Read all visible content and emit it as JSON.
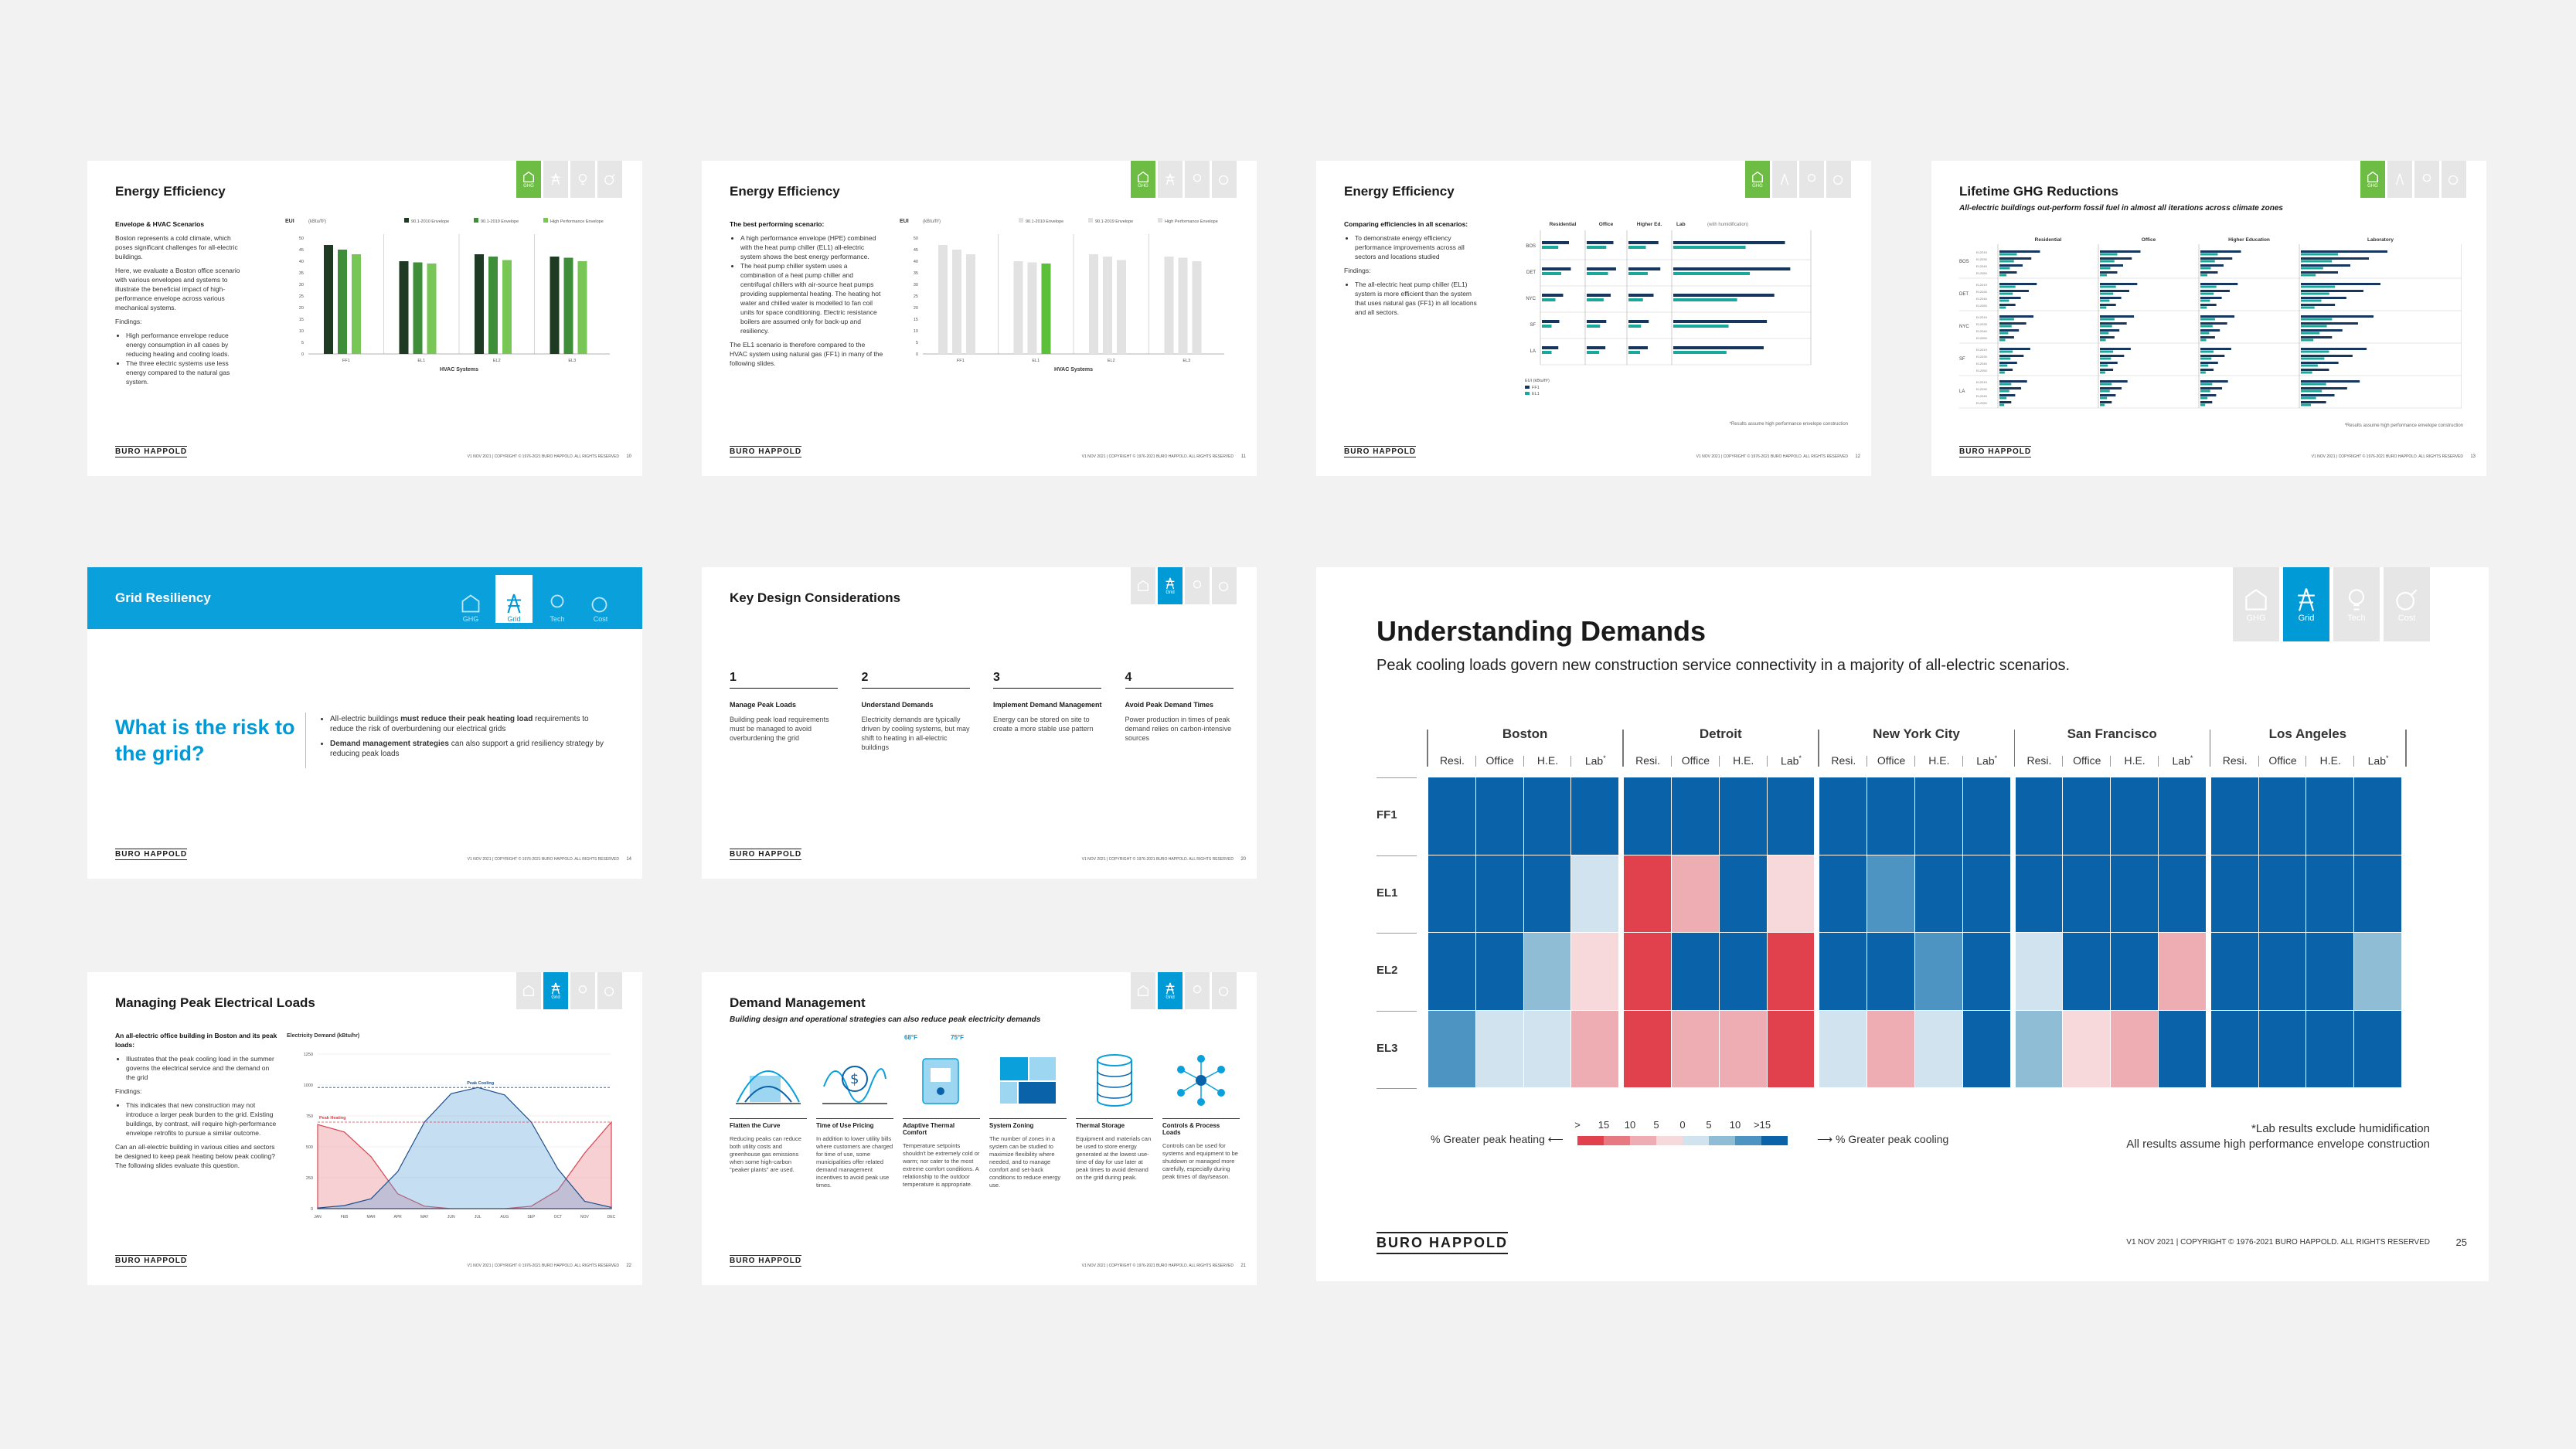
{
  "slides": {
    "s1": {
      "title": "Energy Efficiency",
      "subtitle": "Envelope & HVAC Scenarios",
      "paras": [
        "Boston represents a cold climate, which poses significant challenges for all-electric buildings.",
        "Here, we evaluate a Boston office scenario with various envelopes and systems to illustrate the beneficial impact of high-performance envelope across various mechanical systems.",
        "Findings:"
      ],
      "bullets": [
        "High performance envelope reduce energy consumption in all cases by reducing heating and cooling loads.",
        "The three electric systems use less energy compared to the natural gas system."
      ],
      "page": "10",
      "active_icon": "GHG"
    },
    "s2": {
      "title": "Energy Efficiency",
      "subtitle": "The best performing scenario:",
      "bullets": [
        "A high performance envelope (HPE) combined with the heat pump chiller (EL1) all-electric system shows the best energy performance.",
        "The heat pump chiller system uses a combination of a heat pump chiller and centrifugal chillers with air-source heat pumps providing supplemental heating. The heating hot water and chilled water is modelled to fan coil units for space conditioning. Electric resistance boilers are assumed only for back-up and resiliency."
      ],
      "paras": [
        "The EL1 scenario is therefore compared to the HVAC system using natural gas (FF1) in many of the following slides."
      ],
      "page": "11",
      "active_icon": "GHG"
    },
    "s3": {
      "title": "Energy Efficiency",
      "subtitle": "Comparing efficiencies in all scenarios:",
      "bullets": [
        "To demonstrate energy efficiency performance improvements across all sectors and locations studied"
      ],
      "paras": [
        "Findings:"
      ],
      "bullets2": [
        "The all-electric heat pump chiller (EL1) system is more efficient than the system that uses natural gas (FF1) in all locations and all sectors."
      ],
      "footnote": "*Results assume high performance envelope construction",
      "page": "12",
      "active_icon": "GHG"
    },
    "s4": {
      "title": "Lifetime GHG Reductions",
      "subtitle": "All-electric buildings out-perform fossil fuel in almost all iterations across climate zones",
      "footnote": "*Results assume high performance envelope construction",
      "page": "13",
      "active_icon": "GHG"
    },
    "s5": {
      "banner": "Grid Resiliency",
      "question": "What is the risk to the grid?",
      "bullet1_a": "All-electric buildings ",
      "bullet1_b": "must reduce their peak heating load",
      "bullet1_c": " requirements to reduce the risk of overburdening our electrical grids",
      "bullet2_a": "Demand management strategies",
      "bullet2_b": " can also support a grid resiliency strategy by reducing peak loads",
      "page": "14"
    },
    "s6": {
      "title": "Key Design Considerations",
      "items": [
        {
          "num": "1",
          "head": "Manage Peak Loads",
          "text": "Building peak load requirements must be managed to avoid overburdening the grid"
        },
        {
          "num": "2",
          "head": "Understand Demands",
          "text": "Electricity demands are typically driven by cooling systems, but may shift to heating in all-electric buildings"
        },
        {
          "num": "3",
          "head": "Implement Demand Management",
          "text": "Energy can be stored on site to create a more stable use pattern"
        },
        {
          "num": "4",
          "head": "Avoid Peak Demand Times",
          "text": "Power production in times of peak demand relies on carbon-intensive sources"
        }
      ],
      "page": "20"
    },
    "s7": {
      "title": "Managing Peak Electrical Loads",
      "subtitle": "An all-electric office building in Boston and its peak loads:",
      "bullets": [
        "Illustrates that the peak cooling load in the summer governs the electrical service and the demand on the grid"
      ],
      "paras": [
        "Findings:"
      ],
      "bullets2": [
        "This indicates that new construction may not introduce a larger peak burden to the grid. Existing buildings, by contrast, will require high-performance envelope retrofits to pursue a similar outcome."
      ],
      "closing": "Can an all-electric building in various cities and sectors be designed to keep peak heating below peak cooling? The following slides evaluate this question.",
      "page": "22"
    },
    "s8": {
      "title": "Demand Management",
      "subtitle": "Building design and operational strategies can also reduce peak electricity demands",
      "temps": [
        "68°F",
        "75°F"
      ],
      "items": [
        {
          "head": "Flatten the Curve",
          "text": "Reducing peaks can reduce both utility costs and greenhouse gas emissions when some high-carbon \"peaker plants\" are used."
        },
        {
          "head": "Time of Use Pricing",
          "text": "In addition to lower utility bills where customers are charged for time of use, some municipalities offer related demand management incentives to avoid peak use times."
        },
        {
          "head": "Adaptive Thermal Comfort",
          "text": "Temperature setpoints shouldn't be extremely cold or warm; nor cater to the most extreme comfort conditions. A relationship to the outdoor temperature is appropriate."
        },
        {
          "head": "System Zoning",
          "text": "The number of zones in a system can be studied to maximize flexibility where needed, and to manage comfort and set-back conditions to reduce energy use."
        },
        {
          "head": "Thermal Storage",
          "text": "Equipment and materials can be used to store energy generated at the lowest use-time of day for use later at peak times to avoid demand on the grid during peak."
        },
        {
          "head": "Controls & Process Loads",
          "text": "Controls can be used for systems and equipment to be shutdown or managed more carefully, especially during peak times of day/season."
        }
      ],
      "page": "21"
    }
  },
  "small_icon_labels": [
    "GHG",
    "Grid",
    "Tech",
    "Cost"
  ],
  "s1_chart": {
    "type": "bar",
    "ylabel": "EUI",
    "yunit": "(kBtu/ft²)",
    "xlabel": "HVAC Systems",
    "categories": [
      "FF1",
      "EL1",
      "EL2",
      "EL3"
    ],
    "legend": [
      "90.1-2010 Envelope",
      "90.1-2019 Envelope",
      "High Performance Envelope"
    ],
    "colors": [
      "#1e3a22",
      "#3f8f3a",
      "#78c756"
    ],
    "series": [
      [
        47,
        45,
        43
      ],
      [
        40,
        39.5,
        39
      ],
      [
        43,
        42,
        40.5
      ],
      [
        42,
        41.5,
        40
      ]
    ],
    "ylim": [
      0,
      50
    ],
    "yticks": [
      "0",
      "5",
      "10",
      "15",
      "20",
      "25",
      "30",
      "35",
      "40",
      "45",
      "50"
    ]
  },
  "s3_chart": {
    "sectors": [
      "Residential",
      "Office",
      "Higher Ed.",
      "Lab"
    ],
    "lab_note": "(with humidification)",
    "cities": [
      "BOS",
      "DET",
      "NYC",
      "SF",
      "LA"
    ],
    "legend_title": "EUI (kBtu/ft²)",
    "legend": [
      "FF1",
      "EL1"
    ],
    "colors": [
      "#17365d",
      "#19a89c"
    ],
    "values": [
      [
        [
          28,
          17
        ],
        [
          30,
          22
        ],
        [
          31,
          18
        ],
        [
          105,
          68
        ]
      ],
      [
        [
          30,
          20
        ],
        [
          33,
          24
        ],
        [
          33,
          20
        ],
        [
          110,
          72
        ]
      ],
      [
        [
          22,
          14
        ],
        [
          27,
          19
        ],
        [
          26,
          15
        ],
        [
          95,
          60
        ]
      ],
      [
        [
          18,
          10
        ],
        [
          22,
          15
        ],
        [
          21,
          13
        ],
        [
          88,
          52
        ]
      ],
      [
        [
          17,
          10
        ],
        [
          21,
          14
        ],
        [
          20,
          12
        ],
        [
          85,
          50
        ]
      ]
    ],
    "max": [
      40,
      40,
      40,
      125
    ]
  },
  "s4_chart": {
    "sectors": [
      "Residential",
      "Office",
      "Higher Education",
      "Laboratory"
    ],
    "lab_note": "(with humidification)",
    "cities": [
      "BOS",
      "DET",
      "NYC",
      "SF",
      "LA"
    ],
    "scenarios": [
      "EL2019",
      "EL2030",
      "EL2040",
      "EL2050"
    ],
    "legend_title": "kgCO₂e/ft²",
    "legend": [
      "Natural Gas",
      "All-Electric"
    ],
    "colors": [
      "#17365d",
      "#19a89c"
    ]
  },
  "s7_chart": {
    "title": "Electricity Demand (kBtu/hr)",
    "months": [
      "JAN",
      "FEB",
      "MAR",
      "APR",
      "MAY",
      "JUN",
      "JUL",
      "AUG",
      "SEP",
      "OCT",
      "NOV",
      "DEC"
    ],
    "cooling": [
      5,
      25,
      80,
      300,
      700,
      930,
      980,
      920,
      700,
      320,
      60,
      10
    ],
    "heating": [
      680,
      620,
      420,
      120,
      20,
      0,
      0,
      0,
      20,
      150,
      450,
      700
    ],
    "peak_cooling_label": "Peak Cooling",
    "peak_heating_label": "Peak Heating",
    "yticks": [
      "0",
      "250",
      "500",
      "750",
      "1000",
      "1250"
    ]
  },
  "main": {
    "title": "Understanding Demands",
    "subtitle": "Peak cooling loads govern new construction service connectivity in a majority of all-electric scenarios.",
    "icons": [
      "GHG",
      "Grid",
      "Tech",
      "Cost"
    ],
    "active_icon": "Grid",
    "cities": [
      "Boston",
      "Detroit",
      "New York City",
      "San Francisco",
      "Los Angeles"
    ],
    "sectors": [
      "Resi.",
      "Office",
      "H.E.",
      "Lab"
    ],
    "lab_mark": "*",
    "scenarios": [
      "FF1",
      "EL1",
      "EL2",
      "EL3"
    ],
    "heatmap": [
      [
        12,
        12,
        12,
        12,
        12,
        12,
        12,
        12,
        12,
        12,
        12,
        12,
        12,
        12,
        12,
        12,
        12,
        12,
        12,
        12
      ],
      [
        12,
        12,
        12,
        1,
        -12,
        -6,
        12,
        -2,
        12,
        7,
        12,
        12,
        12,
        12,
        12,
        12,
        12,
        12,
        12,
        12
      ],
      [
        12,
        12,
        5,
        -2,
        -12,
        12,
        12,
        -12,
        12,
        12,
        8,
        12,
        2,
        12,
        12,
        -6,
        12,
        12,
        12,
        6
      ],
      [
        9,
        2,
        2,
        -5,
        -12,
        -5,
        -5,
        -12,
        2,
        -5,
        2,
        12,
        6,
        -2,
        -4,
        12,
        12,
        12,
        12,
        12
      ]
    ],
    "legend_ticks": [
      ">",
      "15",
      "10",
      "5",
      "0",
      "5",
      "10",
      ">15"
    ],
    "legend_left": "% Greater peak heating",
    "legend_right": "% Greater peak cooling",
    "note1": "*Lab results exclude humidification",
    "note2": "All results assume high performance envelope construction",
    "footer": "V1 NOV 2021  |  COPYRIGHT © 1976-2021 BURO HAPPOLD. ALL RIGHTS RESERVED",
    "page": "25"
  },
  "small_footer": "V1 NOV 2021  |  COPYRIGHT © 1976-2021 BURO HAPPOLD. ALL RIGHTS RESERVED",
  "brand": "BURO HAPPOLD",
  "colors": {
    "grid_blue": "#009ad7",
    "ghg_green": "#6dbd45",
    "cool_blue": "#0a62a8",
    "heat_red": "#e0414c"
  }
}
